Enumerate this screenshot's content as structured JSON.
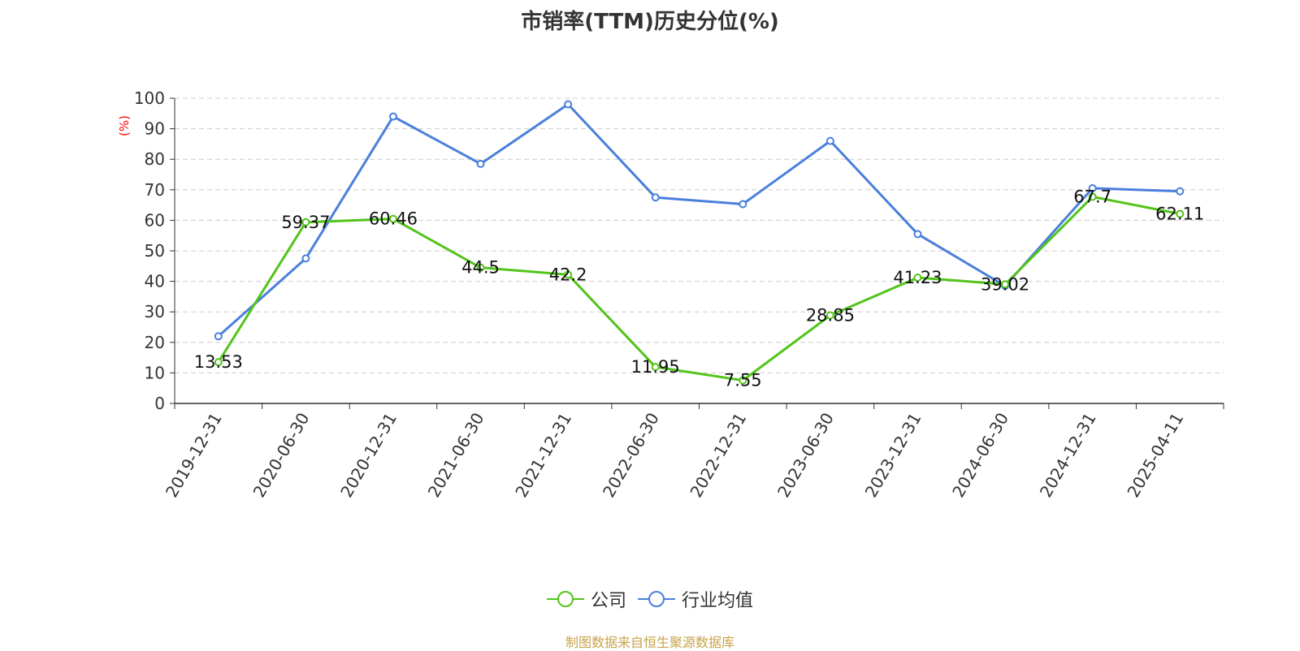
{
  "chart_data": {
    "type": "line",
    "title": "市销率(TTM)历史分位(%)",
    "ylabel": "(%)",
    "xlabel": "",
    "ylim": [
      0,
      100
    ],
    "yticks": [
      0,
      10,
      20,
      30,
      40,
      50,
      60,
      70,
      80,
      90,
      100
    ],
    "grid": true,
    "legend_position": "bottom",
    "categories": [
      "2019-12-31",
      "2020-06-30",
      "2020-12-31",
      "2021-06-30",
      "2021-12-31",
      "2022-06-30",
      "2022-12-31",
      "2023-06-30",
      "2023-12-31",
      "2024-06-30",
      "2024-12-31",
      "2025-04-11"
    ],
    "series": [
      {
        "name": "公司",
        "color": "#52c41a",
        "show_labels": true,
        "values": [
          13.53,
          59.37,
          60.46,
          44.5,
          42.2,
          11.95,
          7.55,
          28.85,
          41.23,
          39.02,
          67.7,
          62.11
        ]
      },
      {
        "name": "行业均值",
        "color": "#4a7fdc",
        "show_labels": false,
        "values": [
          22,
          47.5,
          94,
          78.5,
          98,
          67.5,
          65.3,
          86,
          55.5,
          38.5,
          70.5,
          69.5
        ]
      }
    ]
  },
  "source_note": "制图数据来自恒生聚源数据库"
}
